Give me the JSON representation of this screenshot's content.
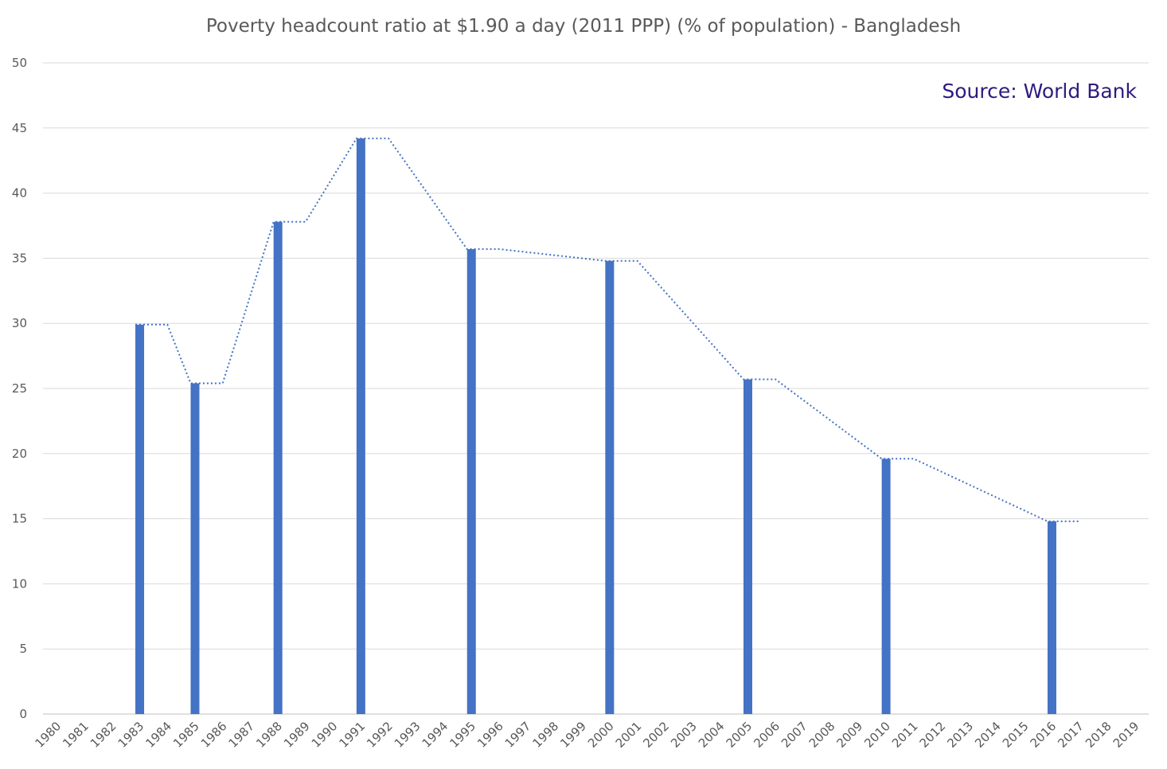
{
  "chart_data": {
    "type": "bar",
    "title": "Poverty headcount ratio at $1.90 a day (2011 PPP) (% of population) - Bangladesh",
    "annotation": "Source: World Bank",
    "annotation_color": "#2E1A80",
    "bar_color": "#4472C4",
    "grid": true,
    "ylim": [
      0,
      50
    ],
    "yticks": [
      0,
      5,
      10,
      15,
      20,
      25,
      30,
      35,
      40,
      45,
      50
    ],
    "categories": [
      "1980",
      "1981",
      "1982",
      "1983",
      "1984",
      "1985",
      "1986",
      "1987",
      "1988",
      "1989",
      "1990",
      "1991",
      "1992",
      "1993",
      "1994",
      "1995",
      "1996",
      "1997",
      "1998",
      "1999",
      "2000",
      "2001",
      "2002",
      "2003",
      "2004",
      "2005",
      "2006",
      "2007",
      "2008",
      "2009",
      "2010",
      "2011",
      "2012",
      "2013",
      "2014",
      "2015",
      "2016",
      "2017",
      "2018",
      "2019"
    ],
    "points": [
      {
        "x": "1983",
        "y": 29.9
      },
      {
        "x": "1985",
        "y": 25.4
      },
      {
        "x": "1988",
        "y": 37.8
      },
      {
        "x": "1991",
        "y": 44.2
      },
      {
        "x": "1995",
        "y": 35.7
      },
      {
        "x": "2000",
        "y": 34.8
      },
      {
        "x": "2005",
        "y": 25.7
      },
      {
        "x": "2010",
        "y": 19.6
      },
      {
        "x": "2016",
        "y": 14.8
      }
    ],
    "trendline": {
      "style": "dotted"
    }
  }
}
